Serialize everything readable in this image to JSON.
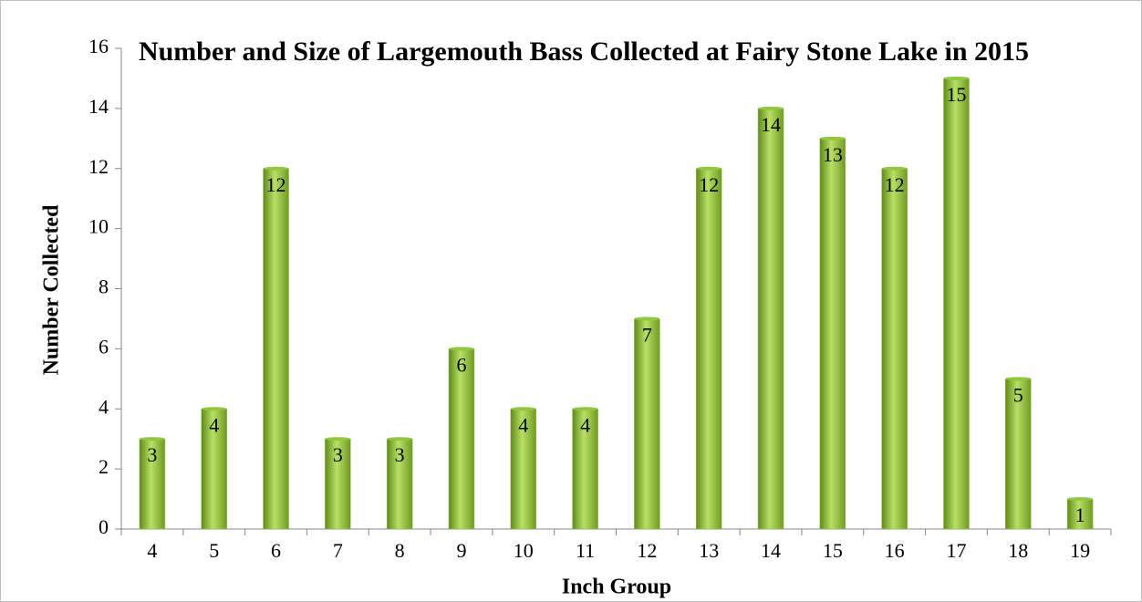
{
  "chart_data": {
    "type": "bar",
    "title": "Number and Size of Largemouth Bass Collected at Fairy Stone Lake in 2015",
    "x_label": "Inch Group",
    "y_label": "Number Collected",
    "categories": [
      "4",
      "5",
      "6",
      "7",
      "8",
      "9",
      "10",
      "11",
      "12",
      "13",
      "14",
      "15",
      "16",
      "17",
      "18",
      "19"
    ],
    "values": [
      3,
      4,
      12,
      3,
      3,
      6,
      4,
      4,
      7,
      12,
      14,
      13,
      12,
      15,
      5,
      1
    ],
    "color": "#92c83e",
    "ylim": [
      0,
      16
    ],
    "yticks": [
      0,
      2,
      4,
      6,
      8,
      10,
      12,
      14,
      16
    ],
    "grid": false,
    "data_labels": true
  }
}
